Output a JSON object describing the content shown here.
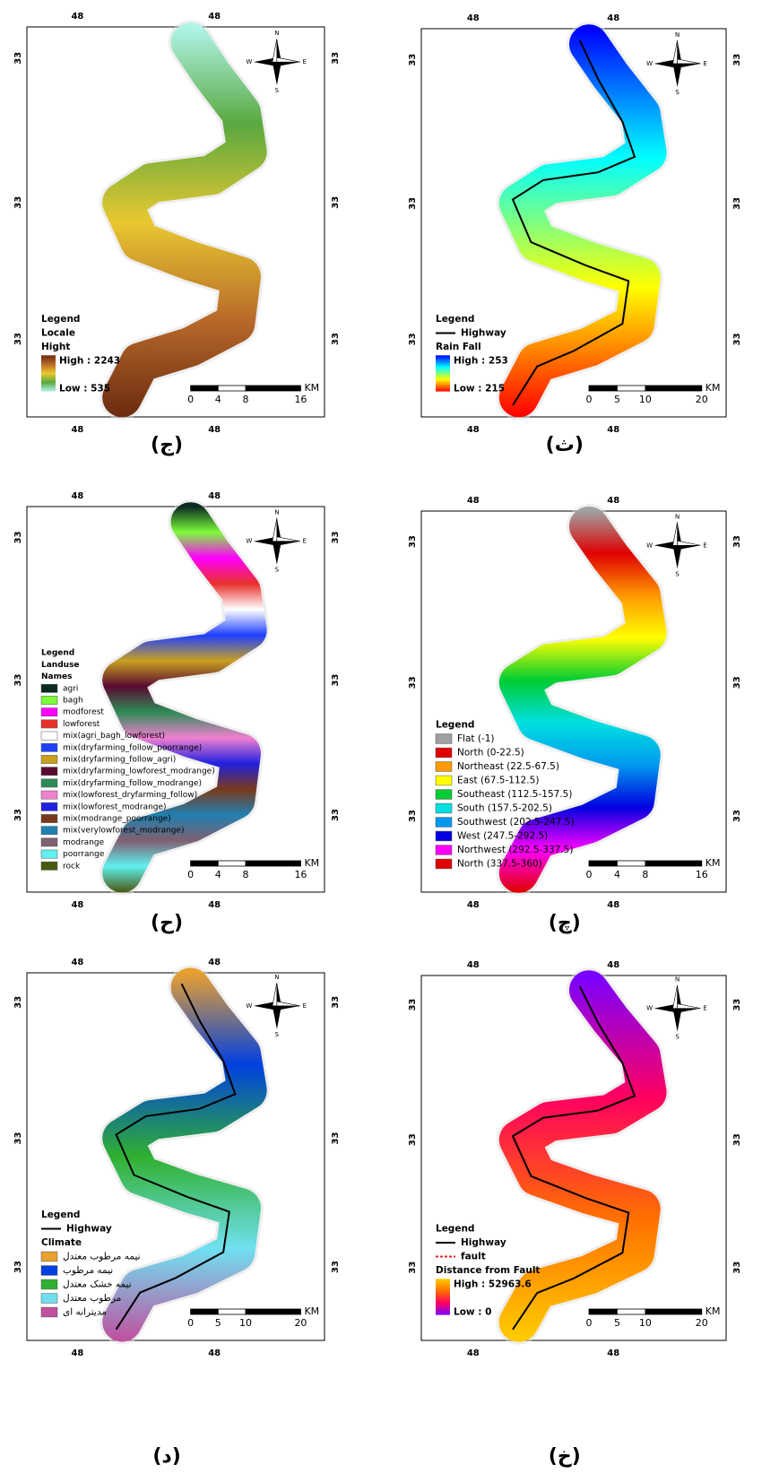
{
  "panels": [
    {
      "caption": "(ج)",
      "top_labels": [
        "48",
        "48"
      ],
      "bottom_labels": [
        "48",
        "48"
      ],
      "left_labels": [
        "33",
        "33",
        "33"
      ],
      "right_labels": [
        "33",
        "33",
        "33"
      ],
      "compass": {
        "n": "N",
        "s": "S",
        "w": "W",
        "e": "E"
      },
      "legend": {
        "title": "Legend",
        "symbols": [],
        "headings": [
          "Locale",
          "Hight"
        ],
        "high": "High : 2243",
        "low": "Low : 535",
        "ramp": [
          "#6b2a10",
          "#b86a2a",
          "#e8c830",
          "#5aa840",
          "#b0f4e8"
        ]
      },
      "scale": {
        "labels": [
          "0",
          "4",
          "8",
          "16"
        ],
        "unit": "KM"
      }
    },
    {
      "caption": "(ث)",
      "top_labels": [
        "48",
        "48"
      ],
      "bottom_labels": [
        "48",
        "48"
      ],
      "left_labels": [
        "33",
        "33",
        "33"
      ],
      "right_labels": [
        "33",
        "33",
        "33"
      ],
      "compass": {
        "n": "N",
        "s": "S",
        "w": "W",
        "e": "E"
      },
      "legend": {
        "title": "Legend",
        "symbols": [
          {
            "label": "Highway",
            "color": "#000000",
            "dashed": false
          }
        ],
        "headings": [
          "Rain Fall"
        ],
        "high": "High : 253",
        "low": "Low : 215",
        "ramp": [
          "#0000ff",
          "#00ffff",
          "#ffff00",
          "#ff0000"
        ]
      },
      "scale": {
        "labels": [
          "0",
          "5",
          "10",
          "20"
        ],
        "unit": "KM"
      }
    },
    {
      "caption": "(ح)",
      "top_labels": [
        "48",
        "48"
      ],
      "bottom_labels": [
        "48",
        "48"
      ],
      "left_labels": [
        "33",
        "33",
        "33"
      ],
      "right_labels": [
        "33",
        "33",
        "33"
      ],
      "compass": {
        "n": "N",
        "s": "S",
        "w": "W",
        "e": "E"
      },
      "legend": {
        "title": "Legend",
        "symbols": [],
        "headings": [
          "Landuse",
          "Names"
        ],
        "items": [
          {
            "label": "agri",
            "color": "#0b2a20"
          },
          {
            "label": "bagh",
            "color": "#7cfc3a"
          },
          {
            "label": "modforest",
            "color": "#ff00ff"
          },
          {
            "label": "lowforest",
            "color": "#e8302a"
          },
          {
            "label": "mix(agri_bagh_lowforest)",
            "color": "#ffffff"
          },
          {
            "label": "mix(dryfarming_follow_poorrange)",
            "color": "#1e40ff"
          },
          {
            "label": "mix(dryfarming_follow_agri)",
            "color": "#c8a020"
          },
          {
            "label": "mix(dryfarming_lowforest_modrange)",
            "color": "#5a0a30"
          },
          {
            "label": "mix(dryfarming_follow_modrange)",
            "color": "#2e8b57"
          },
          {
            "label": "mix(lowforest_dryfarming_follow)",
            "color": "#f080d0"
          },
          {
            "label": "mix(lowforest_modrange)",
            "color": "#2020e0"
          },
          {
            "label": "mix(modrange_poorrange)",
            "color": "#7a3a1a"
          },
          {
            "label": "mix(verylowforest_modrange)",
            "color": "#2080b0"
          },
          {
            "label": "modrange",
            "color": "#806070"
          },
          {
            "label": "poorrange",
            "color": "#60f0f0"
          },
          {
            "label": "rock",
            "color": "#4a5a10"
          }
        ]
      },
      "scale": {
        "labels": [
          "0",
          "4",
          "8",
          "16"
        ],
        "unit": "KM"
      }
    },
    {
      "caption": "(چ)",
      "top_labels": [
        "48",
        "48"
      ],
      "bottom_labels": [
        "48",
        "48"
      ],
      "left_labels": [
        "33",
        "33",
        "33"
      ],
      "right_labels": [
        "33",
        "33",
        "33"
      ],
      "compass": {
        "n": "N",
        "s": "S",
        "w": "W",
        "e": "E"
      },
      "legend": {
        "title": "Legend",
        "symbols": [],
        "headings": [],
        "items": [
          {
            "label": "Flat (-1)",
            "color": "#a0a0a0"
          },
          {
            "label": "North (0-22.5)",
            "color": "#e00000"
          },
          {
            "label": "Northeast (22.5-67.5)",
            "color": "#ff9900"
          },
          {
            "label": "East (67.5-112.5)",
            "color": "#ffff00"
          },
          {
            "label": "Southeast (112.5-157.5)",
            "color": "#00cc33"
          },
          {
            "label": "South (157.5-202.5)",
            "color": "#00e0e0"
          },
          {
            "label": "Southwest (202.5-247.5)",
            "color": "#0099ee"
          },
          {
            "label": "West (247.5-292.5)",
            "color": "#0000e0"
          },
          {
            "label": "Northwest (292.5-337.5)",
            "color": "#ff00ff"
          },
          {
            "label": "North (337.5-360)",
            "color": "#e00000"
          }
        ]
      },
      "scale": {
        "labels": [
          "0",
          "4",
          "8",
          "16"
        ],
        "unit": "KM"
      }
    },
    {
      "caption": "(د)",
      "top_labels": [
        "48",
        "48"
      ],
      "bottom_labels": [
        "48",
        "48"
      ],
      "left_labels": [
        "33",
        "33",
        "33"
      ],
      "right_labels": [
        "33",
        "33",
        "33"
      ],
      "compass": {
        "n": "N",
        "s": "S",
        "w": "W",
        "e": "E"
      },
      "legend": {
        "title": "Legend",
        "symbols": [
          {
            "label": "Highway",
            "color": "#000000",
            "dashed": false
          }
        ],
        "headings": [
          "Climate"
        ],
        "items": [
          {
            "label": "نیمه مرطوب معتدل",
            "color": "#e8a030"
          },
          {
            "label": "نیمه مرطوب",
            "color": "#0040e0"
          },
          {
            "label": "نیمه خشک معتدل",
            "color": "#30b030"
          },
          {
            "label": "مرطوب معتدل",
            "color": "#70e0f0"
          },
          {
            "label": "مدیترانه ای",
            "color": "#c050a0"
          }
        ]
      },
      "scale": {
        "labels": [
          "0",
          "5",
          "10",
          "20"
        ],
        "unit": "KM"
      }
    },
    {
      "caption": "(خ)",
      "top_labels": [
        "48",
        "48"
      ],
      "bottom_labels": [
        "48",
        "48"
      ],
      "left_labels": [
        "33",
        "33",
        "33"
      ],
      "right_labels": [
        "33",
        "33",
        "33"
      ],
      "compass": {
        "n": "N",
        "s": "S",
        "w": "W",
        "e": "E"
      },
      "legend": {
        "title": "Legend",
        "symbols": [
          {
            "label": "Highway",
            "color": "#000000",
            "dashed": false
          },
          {
            "label": "fault",
            "color": "#e02020",
            "dashed": true
          }
        ],
        "headings": [
          "Distance from Fault"
        ],
        "high": "High : 52963.6",
        "low": "Low : 0",
        "ramp": [
          "#ffcc00",
          "#ff7000",
          "#ff0060",
          "#7a00ff"
        ]
      },
      "scale": {
        "labels": [
          "0",
          "5",
          "10",
          "20"
        ],
        "unit": "KM"
      }
    }
  ]
}
